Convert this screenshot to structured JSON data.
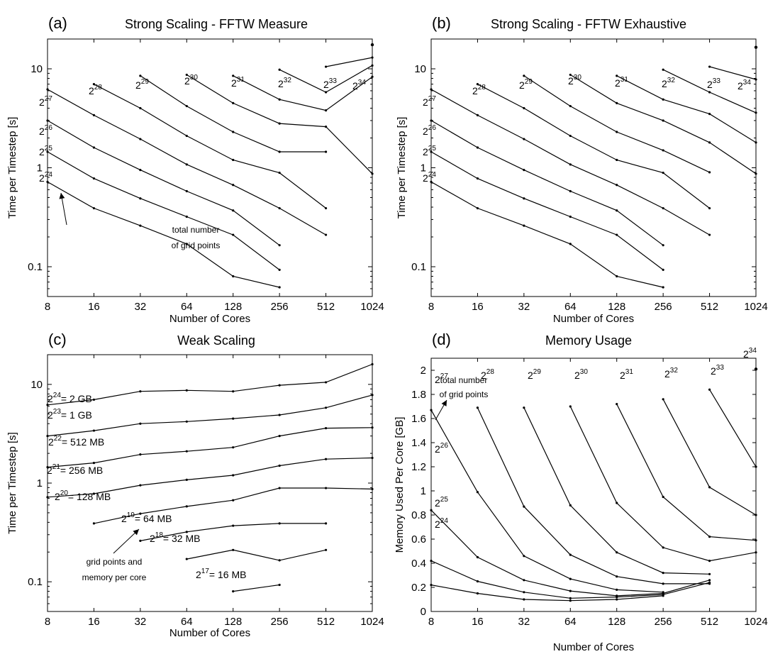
{
  "chart_data": [
    {
      "panel": "(a)",
      "type": "line",
      "title": "Strong Scaling - FFTW Measure",
      "xlabel": "Number of Cores",
      "ylabel": "Time per Timestep [s]",
      "yscale": "log",
      "xscale": "log2",
      "x_ticks": [
        8,
        16,
        32,
        64,
        128,
        256,
        512,
        1024
      ],
      "y_ticks": [
        0.1,
        1,
        10
      ],
      "y_tick_labels": [
        "0.1",
        "1",
        "10"
      ],
      "annotation": {
        "text": [
          "total number",
          "of grid points"
        ]
      },
      "series": [
        {
          "label_base": "2",
          "label_exp": "24",
          "x": [
            8,
            16,
            32,
            64,
            128,
            256
          ],
          "y": [
            0.72,
            0.39,
            0.26,
            0.17,
            0.08,
            0.062
          ]
        },
        {
          "label_base": "2",
          "label_exp": "25",
          "x": [
            8,
            16,
            32,
            64,
            128,
            256
          ],
          "y": [
            1.45,
            0.78,
            0.49,
            0.32,
            0.21,
            0.093
          ]
        },
        {
          "label_base": "2",
          "label_exp": "26",
          "x": [
            8,
            16,
            32,
            64,
            128,
            256
          ],
          "y": [
            3.0,
            1.6,
            0.95,
            0.58,
            0.37,
            0.165
          ]
        },
        {
          "label_base": "2",
          "label_exp": "27",
          "x": [
            8,
            16,
            32,
            64,
            128,
            256,
            512
          ],
          "y": [
            6.2,
            3.4,
            1.95,
            1.08,
            0.67,
            0.39,
            0.21
          ]
        },
        {
          "label_base": "2",
          "label_exp": "28",
          "x": [
            16,
            32,
            64,
            128,
            256,
            512
          ],
          "y": [
            7.0,
            4.0,
            2.1,
            1.2,
            0.89,
            0.39
          ]
        },
        {
          "label_base": "2",
          "label_exp": "29",
          "x": [
            32,
            64,
            128,
            256,
            512
          ],
          "y": [
            8.5,
            4.2,
            2.3,
            1.45,
            1.45
          ]
        },
        {
          "label_base": "2",
          "label_exp": "30",
          "x": [
            64,
            128,
            256,
            512,
            1024
          ],
          "y": [
            8.7,
            4.5,
            2.8,
            2.6,
            0.87
          ]
        },
        {
          "label_base": "2",
          "label_exp": "31",
          "x": [
            128,
            256,
            512,
            1024
          ],
          "y": [
            8.5,
            4.9,
            3.8,
            8.3
          ]
        },
        {
          "label_base": "2",
          "label_exp": "32",
          "x": [
            256,
            512,
            1024
          ],
          "y": [
            9.8,
            5.8,
            10.8
          ]
        },
        {
          "label_base": "2",
          "label_exp": "33",
          "x": [
            512,
            1024
          ],
          "y": [
            10.5,
            13.0
          ]
        },
        {
          "label_base": "2",
          "label_exp": "34",
          "x": [
            1024
          ],
          "y": [
            17.5
          ]
        }
      ]
    },
    {
      "panel": "(b)",
      "type": "line",
      "title": "Strong Scaling - FFTW Exhaustive",
      "xlabel": "Number of Cores",
      "ylabel": "Time per Timestep [s]",
      "yscale": "log",
      "xscale": "log2",
      "x_ticks": [
        8,
        16,
        32,
        64,
        128,
        256,
        512,
        1024
      ],
      "y_ticks": [
        0.1,
        1,
        10
      ],
      "y_tick_labels": [
        "0.1",
        "1",
        "10"
      ],
      "series": [
        {
          "label_base": "2",
          "label_exp": "24",
          "x": [
            8,
            16,
            32,
            64,
            128,
            256
          ],
          "y": [
            0.72,
            0.39,
            0.26,
            0.17,
            0.08,
            0.062
          ]
        },
        {
          "label_base": "2",
          "label_exp": "25",
          "x": [
            8,
            16,
            32,
            64,
            128,
            256
          ],
          "y": [
            1.45,
            0.78,
            0.49,
            0.32,
            0.21,
            0.093
          ]
        },
        {
          "label_base": "2",
          "label_exp": "26",
          "x": [
            8,
            16,
            32,
            64,
            128,
            256
          ],
          "y": [
            3.0,
            1.6,
            0.95,
            0.58,
            0.37,
            0.165
          ]
        },
        {
          "label_base": "2",
          "label_exp": "27",
          "x": [
            8,
            16,
            32,
            64,
            128,
            256,
            512
          ],
          "y": [
            6.2,
            3.4,
            1.95,
            1.08,
            0.67,
            0.39,
            0.21
          ]
        },
        {
          "label_base": "2",
          "label_exp": "28",
          "x": [
            16,
            32,
            64,
            128,
            256,
            512
          ],
          "y": [
            7.0,
            4.0,
            2.1,
            1.2,
            0.89,
            0.39
          ]
        },
        {
          "label_base": "2",
          "label_exp": "29",
          "x": [
            32,
            64,
            128,
            256,
            512
          ],
          "y": [
            8.5,
            4.2,
            2.3,
            1.5,
            0.9
          ]
        },
        {
          "label_base": "2",
          "label_exp": "30",
          "x": [
            64,
            128,
            256,
            512,
            1024
          ],
          "y": [
            8.7,
            4.5,
            3.0,
            1.8,
            0.87
          ]
        },
        {
          "label_base": "2",
          "label_exp": "31",
          "x": [
            128,
            256,
            512,
            1024
          ],
          "y": [
            8.5,
            4.9,
            3.5,
            1.8
          ]
        },
        {
          "label_base": "2",
          "label_exp": "32",
          "x": [
            256,
            512,
            1024
          ],
          "y": [
            9.8,
            5.8,
            3.6
          ]
        },
        {
          "label_base": "2",
          "label_exp": "33",
          "x": [
            512,
            1024
          ],
          "y": [
            10.5,
            7.8
          ]
        },
        {
          "label_base": "2",
          "label_exp": "34",
          "x": [
            1024
          ],
          "y": [
            16.5
          ]
        }
      ]
    },
    {
      "panel": "(c)",
      "type": "line",
      "title": "Weak Scaling",
      "xlabel": "Number of Cores",
      "ylabel": "Time per Timestep [s]",
      "yscale": "log",
      "xscale": "log2",
      "x_ticks": [
        8,
        16,
        32,
        64,
        128,
        256,
        512,
        1024
      ],
      "y_ticks": [
        0.1,
        1,
        10
      ],
      "y_tick_labels": [
        "0.1",
        "1",
        "10"
      ],
      "annotation": {
        "text": [
          "grid points and",
          "memory per core"
        ]
      },
      "series": [
        {
          "label_base": "2",
          "label_exp": "17",
          "label_suffix": "= 16 MB",
          "x": [
            128,
            256
          ],
          "y": [
            0.08,
            0.093
          ]
        },
        {
          "label_base": "2",
          "label_exp": "18",
          "label_suffix": "= 32 MB",
          "x": [
            64,
            128,
            256,
            512
          ],
          "y": [
            0.17,
            0.21,
            0.165,
            0.21
          ]
        },
        {
          "label_base": "2",
          "label_exp": "19",
          "label_suffix": "= 64 MB",
          "x": [
            32,
            64,
            128,
            256,
            512
          ],
          "y": [
            0.26,
            0.32,
            0.37,
            0.39,
            0.39
          ]
        },
        {
          "label_base": "2",
          "label_exp": "20",
          "label_suffix": "= 128 MB",
          "x": [
            16,
            32,
            64,
            128,
            256,
            512,
            1024
          ],
          "y": [
            0.39,
            0.49,
            0.58,
            0.67,
            0.89,
            0.89,
            0.87
          ]
        },
        {
          "label_base": "2",
          "label_exp": "21",
          "label_suffix": "= 256 MB",
          "x": [
            8,
            16,
            32,
            64,
            128,
            256,
            512,
            1024
          ],
          "y": [
            0.72,
            0.78,
            0.95,
            1.08,
            1.2,
            1.5,
            1.75,
            1.8
          ]
        },
        {
          "label_base": "2",
          "label_exp": "22",
          "label_suffix": "= 512 MB",
          "x": [
            8,
            16,
            32,
            64,
            128,
            256,
            512,
            1024
          ],
          "y": [
            1.45,
            1.6,
            1.95,
            2.1,
            2.3,
            3.0,
            3.6,
            3.65
          ]
        },
        {
          "label_base": "2",
          "label_exp": "23",
          "label_suffix": "= 1 GB",
          "x": [
            8,
            16,
            32,
            64,
            128,
            256,
            512,
            1024
          ],
          "y": [
            3.0,
            3.4,
            4.0,
            4.2,
            4.5,
            4.9,
            5.8,
            7.8
          ]
        },
        {
          "label_base": "2",
          "label_exp": "24",
          "label_suffix": "= 2 GB",
          "x": [
            8,
            16,
            32,
            64,
            128,
            256,
            512,
            1024
          ],
          "y": [
            6.2,
            7.0,
            8.5,
            8.7,
            8.5,
            9.8,
            10.5,
            16.0
          ]
        }
      ]
    },
    {
      "panel": "(d)",
      "type": "line",
      "title": "Memory Usage",
      "xlabel": "Number of Cores",
      "ylabel": "Memory Used Per Core [GB]",
      "yscale": "linear",
      "xscale": "log2",
      "x_ticks": [
        8,
        16,
        32,
        64,
        128,
        256,
        512,
        1024
      ],
      "y_ticks": [
        0,
        0.2,
        0.4,
        0.6,
        0.8,
        1,
        1.2,
        1.4,
        1.6,
        1.8,
        2
      ],
      "y_tick_labels": [
        "0",
        "0.2",
        "0.4",
        "0.6",
        "0.8",
        "1",
        "1.2",
        "1.4",
        "1.6",
        "1.8",
        "2"
      ],
      "ylim": [
        0,
        2.1
      ],
      "annotation": {
        "text": [
          "total number",
          "of grid points"
        ]
      },
      "series": [
        {
          "label_base": "2",
          "label_exp": "24",
          "x": [
            8,
            16,
            32,
            64,
            128,
            256
          ],
          "y": [
            0.22,
            0.15,
            0.1,
            0.09,
            0.1,
            0.13
          ]
        },
        {
          "label_base": "2",
          "label_exp": "25",
          "x": [
            8,
            16,
            32,
            64,
            128,
            256,
            512
          ],
          "y": [
            0.42,
            0.25,
            0.16,
            0.11,
            0.12,
            0.14,
            0.24
          ]
        },
        {
          "label_base": "2",
          "label_exp": "26",
          "x": [
            8,
            16,
            32,
            64,
            128,
            256,
            512
          ],
          "y": [
            0.84,
            0.45,
            0.26,
            0.17,
            0.13,
            0.15,
            0.26
          ]
        },
        {
          "label_base": "2",
          "label_exp": "27",
          "x": [
            8,
            16,
            32,
            64,
            128,
            256
          ],
          "y": [
            1.67,
            0.99,
            0.46,
            0.27,
            0.18,
            0.16
          ]
        },
        {
          "label_base": "2",
          "label_exp": "28",
          "x": [
            16,
            32,
            64,
            128,
            256,
            512
          ],
          "y": [
            1.69,
            0.87,
            0.47,
            0.29,
            0.23,
            0.23
          ]
        },
        {
          "label_base": "2",
          "label_exp": "29",
          "x": [
            32,
            64,
            128,
            256,
            512
          ],
          "y": [
            1.69,
            0.88,
            0.49,
            0.32,
            0.31
          ]
        },
        {
          "label_base": "2",
          "label_exp": "30",
          "x": [
            64,
            128,
            256,
            512,
            1024
          ],
          "y": [
            1.7,
            0.9,
            0.53,
            0.42,
            0.49
          ]
        },
        {
          "label_base": "2",
          "label_exp": "31",
          "x": [
            128,
            256,
            512,
            1024
          ],
          "y": [
            1.72,
            0.95,
            0.62,
            0.59
          ]
        },
        {
          "label_base": "2",
          "label_exp": "32",
          "x": [
            256,
            512,
            1024
          ],
          "y": [
            1.76,
            1.03,
            0.8
          ]
        },
        {
          "label_base": "2",
          "label_exp": "33",
          "x": [
            512,
            1024
          ],
          "y": [
            1.84,
            1.2
          ]
        },
        {
          "label_base": "2",
          "label_exp": "34",
          "x": [
            1024
          ],
          "y": [
            2.01
          ]
        }
      ]
    }
  ]
}
